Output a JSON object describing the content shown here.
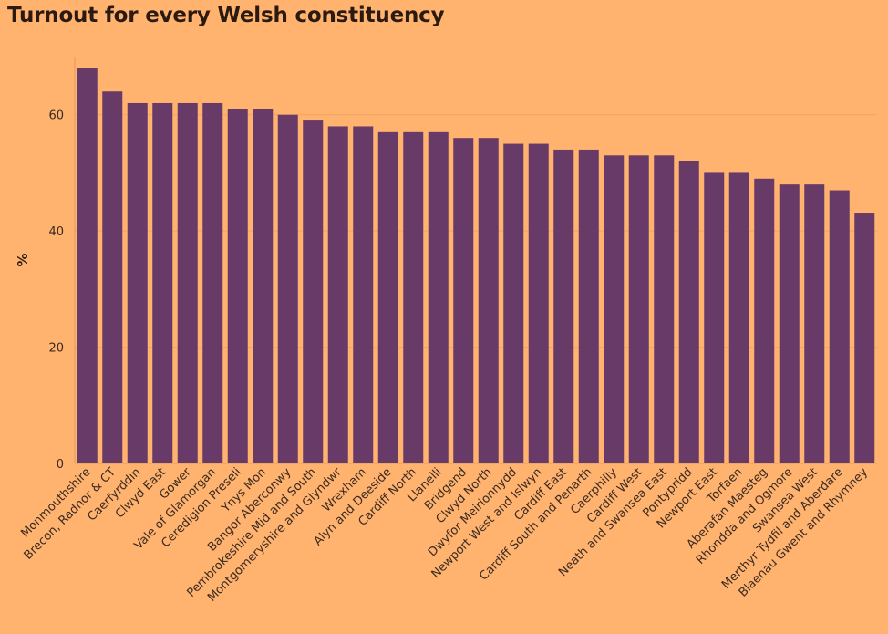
{
  "title": "Turnout for every Welsh constituency",
  "colors": {
    "background": "#ffb36e",
    "bar": "#673a67",
    "grid": "#f0a567"
  },
  "chart_data": {
    "type": "bar",
    "title": "Turnout for every Welsh constituency",
    "xlabel": "",
    "ylabel": "%",
    "ylim": [
      0,
      70
    ],
    "yticks": [
      0,
      20,
      40,
      60
    ],
    "grid": true,
    "categories": [
      "Monmouthshire",
      "Brecon, Radnor & CT",
      "Caerfyrddin",
      "Clwyd East",
      "Gower",
      "Vale of Glamorgan",
      "Ceredigion Preseli",
      "Ynys Mon",
      "Bangor Aberconwy",
      "Pembrokeshire Mid and South",
      "Montgomeryshire and Glyndwr",
      "Wrexham",
      "Alyn and Deeside",
      "Cardiff North",
      "Llanelli",
      "Bridgend",
      "Clwyd North",
      "Dwyfor Meirionnydd",
      "Newport West and Islwyn",
      "Cardiff East",
      "Cardiff South and Penarth",
      "Caerphilly",
      "Cardiff West",
      "Neath and Swansea East",
      "Pontypridd",
      "Newport East",
      "Torfaen",
      "Aberafan Maesteg",
      "Rhondda and Ogmore",
      "Swansea West",
      "Merthyr Tydfil and Aberdare",
      "Blaenau Gwent and Rhymney"
    ],
    "values": [
      68,
      64,
      62,
      62,
      62,
      62,
      61,
      61,
      60,
      59,
      58,
      58,
      57,
      57,
      57,
      56,
      56,
      55,
      55,
      54,
      54,
      53,
      53,
      53,
      52,
      50,
      50,
      49,
      48,
      48,
      47,
      43
    ]
  }
}
